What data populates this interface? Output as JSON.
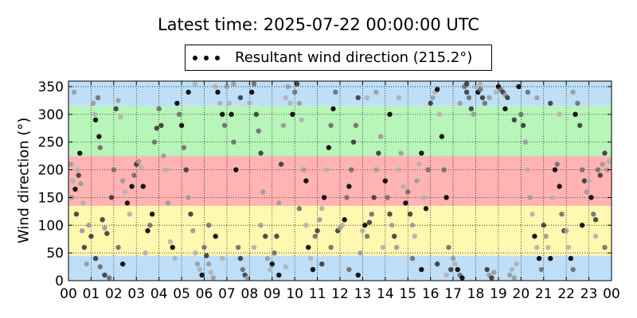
{
  "chart_data": {
    "type": "scatter",
    "title": "Latest time: 2025-07-22 00:00:00 UTC",
    "ylabel": "Wind direction (°)",
    "xlabel": "",
    "legend": {
      "label": "Resultant wind direction (215.2°)",
      "placement": "top-center"
    },
    "xlim": [
      0,
      24
    ],
    "ylim": [
      0,
      360
    ],
    "grid": true,
    "x_ticks": [
      "00",
      "01",
      "02",
      "03",
      "04",
      "05",
      "06",
      "07",
      "08",
      "09",
      "10",
      "11",
      "12",
      "13",
      "14",
      "15",
      "16",
      "17",
      "18",
      "19",
      "20",
      "21",
      "22",
      "23",
      "00"
    ],
    "y_ticks": [
      0,
      50,
      100,
      150,
      200,
      250,
      300,
      350
    ],
    "bands": [
      {
        "from": 0,
        "to": 45,
        "color": "#bfdff8"
      },
      {
        "from": 45,
        "to": 135,
        "color": "#fff8b0"
      },
      {
        "from": 135,
        "to": 225,
        "color": "#ffb3b3"
      },
      {
        "from": 225,
        "to": 315,
        "color": "#b8f5b8"
      },
      {
        "from": 315,
        "to": 360,
        "color": "#bfdff8"
      }
    ],
    "marker_colors": [
      "#9a9a9a",
      "#6e6e6e",
      "#b0b0b0",
      "#3a3a3a",
      "#000000"
    ],
    "series": [
      {
        "name": "Resultant wind direction (215.2°)",
        "points": [
          [
            0.1,
            210
          ],
          [
            0.2,
            180
          ],
          [
            0.3,
            165
          ],
          [
            0.4,
            200
          ],
          [
            0.5,
            230
          ],
          [
            0.15,
            150
          ],
          [
            0.35,
            120
          ],
          [
            0.6,
            90
          ],
          [
            0.7,
            60
          ],
          [
            0.8,
            30
          ],
          [
            0.25,
            340
          ],
          [
            0.45,
            190
          ],
          [
            0.55,
            175
          ],
          [
            0.65,
            140
          ],
          [
            0.9,
            100
          ],
          [
            1.0,
            80
          ],
          [
            1.1,
            320
          ],
          [
            1.15,
            300
          ],
          [
            1.2,
            290
          ],
          [
            1.3,
            330
          ],
          [
            1.35,
            260
          ],
          [
            1.4,
            240
          ],
          [
            1.5,
            110
          ],
          [
            1.6,
            95
          ],
          [
            1.7,
            85
          ],
          [
            1.2,
            40
          ],
          [
            1.4,
            25
          ],
          [
            1.6,
            10
          ],
          [
            1.8,
            5
          ],
          [
            1.9,
            150
          ],
          [
            2.0,
            200
          ],
          [
            2.1,
            310
          ],
          [
            2.2,
            325
          ],
          [
            2.3,
            295
          ],
          [
            2.4,
            180
          ],
          [
            2.5,
            160
          ],
          [
            2.6,
            140
          ],
          [
            2.7,
            120
          ],
          [
            2.8,
            170
          ],
          [
            2.9,
            190
          ],
          [
            2.2,
            60
          ],
          [
            2.4,
            30
          ],
          [
            3.0,
            210
          ],
          [
            3.1,
            215
          ],
          [
            3.2,
            205
          ],
          [
            3.3,
            170
          ],
          [
            3.4,
            50
          ],
          [
            3.5,
            90
          ],
          [
            3.6,
            100
          ],
          [
            3.7,
            120
          ],
          [
            3.8,
            250
          ],
          [
            3.9,
            275
          ],
          [
            4.0,
            310
          ],
          [
            4.1,
            280
          ],
          [
            4.2,
            225
          ],
          [
            4.3,
            200
          ],
          [
            4.4,
            140
          ],
          [
            4.5,
            70
          ],
          [
            4.6,
            60
          ],
          [
            4.7,
            40
          ],
          [
            4.8,
            320
          ],
          [
            4.9,
            300
          ],
          [
            5.0,
            280
          ],
          [
            5.1,
            240
          ],
          [
            5.2,
            200
          ],
          [
            5.3,
            150
          ],
          [
            5.4,
            120
          ],
          [
            5.5,
            90
          ],
          [
            5.6,
            50
          ],
          [
            5.7,
            30
          ],
          [
            5.8,
            20
          ],
          [
            5.9,
            10
          ],
          [
            5.3,
            340
          ],
          [
            5.6,
            355
          ],
          [
            6.0,
            60
          ],
          [
            6.1,
            45
          ],
          [
            6.2,
            30
          ],
          [
            6.3,
            15
          ],
          [
            6.4,
            5
          ],
          [
            6.5,
            350
          ],
          [
            6.6,
            340
          ],
          [
            6.7,
            320
          ],
          [
            6.8,
            300
          ],
          [
            6.9,
            280
          ],
          [
            6.2,
            100
          ],
          [
            6.5,
            80
          ],
          [
            6.8,
            40
          ],
          [
            7.0,
            350
          ],
          [
            7.1,
            320
          ],
          [
            7.2,
            300
          ],
          [
            7.3,
            250
          ],
          [
            7.4,
            200
          ],
          [
            7.5,
            60
          ],
          [
            7.6,
            40
          ],
          [
            7.7,
            20
          ],
          [
            7.8,
            10
          ],
          [
            7.9,
            5
          ],
          [
            7.3,
            355
          ],
          [
            7.6,
            330
          ],
          [
            8.0,
            320
          ],
          [
            8.1,
            340
          ],
          [
            8.2,
            355
          ],
          [
            8.3,
            300
          ],
          [
            8.4,
            270
          ],
          [
            8.5,
            230
          ],
          [
            8.6,
            160
          ],
          [
            8.7,
            80
          ],
          [
            8.8,
            40
          ],
          [
            8.9,
            20
          ],
          [
            8.2,
            60
          ],
          [
            8.5,
            100
          ],
          [
            9.0,
            30
          ],
          [
            9.1,
            50
          ],
          [
            9.2,
            80
          ],
          [
            9.3,
            140
          ],
          [
            9.4,
            210
          ],
          [
            9.5,
            280
          ],
          [
            9.6,
            330
          ],
          [
            9.7,
            350
          ],
          [
            9.8,
            320
          ],
          [
            9.9,
            300
          ],
          [
            9.3,
            10
          ],
          [
            9.6,
            25
          ],
          [
            10.0,
            340
          ],
          [
            10.1,
            355
          ],
          [
            10.2,
            320
          ],
          [
            10.3,
            290
          ],
          [
            10.4,
            200
          ],
          [
            10.5,
            100
          ],
          [
            10.6,
            60
          ],
          [
            10.7,
            40
          ],
          [
            10.8,
            20
          ],
          [
            10.9,
            80
          ],
          [
            10.2,
            130
          ],
          [
            10.5,
            180
          ],
          [
            11.0,
            90
          ],
          [
            11.1,
            110
          ],
          [
            11.2,
            130
          ],
          [
            11.3,
            150
          ],
          [
            11.4,
            200
          ],
          [
            11.5,
            240
          ],
          [
            11.6,
            280
          ],
          [
            11.7,
            310
          ],
          [
            11.8,
            340
          ],
          [
            11.9,
            90
          ],
          [
            11.2,
            30
          ],
          [
            11.6,
            60
          ],
          [
            12.0,
            95
          ],
          [
            12.1,
            100
          ],
          [
            12.2,
            110
          ],
          [
            12.3,
            150
          ],
          [
            12.4,
            170
          ],
          [
            12.5,
            200
          ],
          [
            12.6,
            250
          ],
          [
            12.7,
            280
          ],
          [
            12.8,
            330
          ],
          [
            12.9,
            50
          ],
          [
            12.4,
            20
          ],
          [
            12.8,
            10
          ],
          [
            13.0,
            90
          ],
          [
            13.1,
            100
          ],
          [
            13.2,
            80
          ],
          [
            13.3,
            105
          ],
          [
            13.4,
            120
          ],
          [
            13.5,
            150
          ],
          [
            13.6,
            200
          ],
          [
            13.7,
            230
          ],
          [
            13.8,
            260
          ],
          [
            13.9,
            60
          ],
          [
            13.2,
            330
          ],
          [
            13.6,
            340
          ],
          [
            14.0,
            180
          ],
          [
            14.1,
            150
          ],
          [
            14.2,
            120
          ],
          [
            14.3,
            100
          ],
          [
            14.4,
            80
          ],
          [
            14.5,
            60
          ],
          [
            14.6,
            200
          ],
          [
            14.7,
            230
          ],
          [
            14.8,
            170
          ],
          [
            14.9,
            140
          ],
          [
            14.2,
            300
          ],
          [
            14.6,
            330
          ],
          [
            15.0,
            160
          ],
          [
            15.1,
            120
          ],
          [
            15.2,
            100
          ],
          [
            15.3,
            80
          ],
          [
            15.4,
            180
          ],
          [
            15.5,
            210
          ],
          [
            15.6,
            230
          ],
          [
            15.7,
            150
          ],
          [
            15.8,
            130
          ],
          [
            15.9,
            200
          ],
          [
            15.2,
            40
          ],
          [
            15.6,
            20
          ],
          [
            16.0,
            320
          ],
          [
            16.1,
            330
          ],
          [
            16.2,
            340
          ],
          [
            16.3,
            345
          ],
          [
            16.4,
            300
          ],
          [
            16.5,
            260
          ],
          [
            16.6,
            200
          ],
          [
            16.7,
            150
          ],
          [
            16.8,
            60
          ],
          [
            16.9,
            20
          ],
          [
            16.3,
            30
          ],
          [
            16.7,
            10
          ],
          [
            17.0,
            40
          ],
          [
            17.1,
            30
          ],
          [
            17.2,
            20
          ],
          [
            17.3,
            10
          ],
          [
            17.4,
            5
          ],
          [
            17.5,
            350
          ],
          [
            17.6,
            340
          ],
          [
            17.7,
            330
          ],
          [
            17.8,
            310
          ],
          [
            17.9,
            300
          ],
          [
            17.3,
            320
          ],
          [
            17.6,
            355
          ],
          [
            18.0,
            350
          ],
          [
            18.1,
            340
          ],
          [
            18.2,
            345
          ],
          [
            18.3,
            330
          ],
          [
            18.4,
            320
          ],
          [
            18.5,
            20
          ],
          [
            18.6,
            10
          ],
          [
            18.7,
            5
          ],
          [
            18.8,
            15
          ],
          [
            18.9,
            340
          ],
          [
            18.2,
            355
          ],
          [
            18.6,
            330
          ],
          [
            19.0,
            350
          ],
          [
            19.1,
            345
          ],
          [
            19.2,
            340
          ],
          [
            19.3,
            335
          ],
          [
            19.4,
            330
          ],
          [
            19.5,
            10
          ],
          [
            19.6,
            20
          ],
          [
            19.7,
            5
          ],
          [
            19.8,
            30
          ],
          [
            19.9,
            350
          ],
          [
            19.3,
            310
          ],
          [
            19.7,
            290
          ],
          [
            20.0,
            300
          ],
          [
            20.1,
            280
          ],
          [
            20.2,
            250
          ],
          [
            20.3,
            200
          ],
          [
            20.4,
            150
          ],
          [
            20.5,
            120
          ],
          [
            20.6,
            80
          ],
          [
            20.7,
            60
          ],
          [
            20.8,
            40
          ],
          [
            20.9,
            20
          ],
          [
            20.3,
            340
          ],
          [
            20.7,
            330
          ],
          [
            21.0,
            100
          ],
          [
            21.1,
            80
          ],
          [
            21.2,
            60
          ],
          [
            21.3,
            40
          ],
          [
            21.4,
            150
          ],
          [
            21.5,
            200
          ],
          [
            21.6,
            210
          ],
          [
            21.7,
            170
          ],
          [
            21.8,
            120
          ],
          [
            21.9,
            90
          ],
          [
            21.3,
            320
          ],
          [
            21.7,
            300
          ],
          [
            22.0,
            90
          ],
          [
            22.1,
            60
          ],
          [
            22.2,
            40
          ],
          [
            22.3,
            20
          ],
          [
            22.4,
            300
          ],
          [
            22.5,
            320
          ],
          [
            22.6,
            280
          ],
          [
            22.7,
            200
          ],
          [
            22.8,
            180
          ],
          [
            22.9,
            160
          ],
          [
            22.3,
            340
          ],
          [
            22.7,
            100
          ],
          [
            23.0,
            180
          ],
          [
            23.1,
            150
          ],
          [
            23.2,
            120
          ],
          [
            23.3,
            110
          ],
          [
            23.4,
            200
          ],
          [
            23.5,
            190
          ],
          [
            23.6,
            210
          ],
          [
            23.7,
            230
          ],
          [
            23.8,
            200
          ],
          [
            23.9,
            215
          ],
          [
            23.3,
            80
          ],
          [
            23.7,
            60
          ]
        ]
      }
    ]
  }
}
